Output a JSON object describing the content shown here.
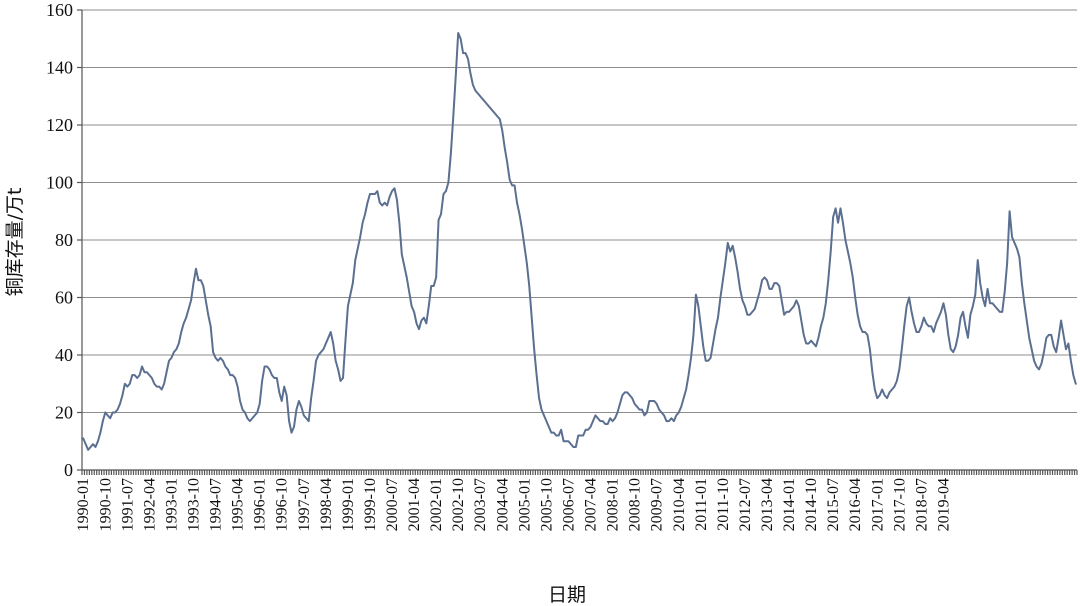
{
  "chart_data": {
    "type": "line",
    "xlabel": "日期",
    "ylabel": "铜库存量/万t",
    "ylim": [
      0,
      160
    ],
    "yticks": [
      "0",
      "20",
      "40",
      "60",
      "80",
      "100",
      "120",
      "140",
      "160"
    ],
    "x_start": "1990-01",
    "x_tick_labels": [
      "1990-01",
      "1990-10",
      "1991-07",
      "1992-04",
      "1993-01",
      "1993-10",
      "1994-07",
      "1995-04",
      "1996-01",
      "1996-10",
      "1997-07",
      "1998-04",
      "1999-01",
      "1999-10",
      "2000-07",
      "2001-04",
      "2002-01",
      "2002-10",
      "2003-07",
      "2004-04",
      "2005-01",
      "2005-10",
      "2006-07",
      "2007-04",
      "2008-01",
      "2008-10",
      "2009-07",
      "2010-04",
      "2011-01",
      "2011-10",
      "2012-07",
      "2013-04",
      "2014-01",
      "2014-10",
      "2015-07",
      "2016-04",
      "2017-01",
      "2017-10",
      "2018-07",
      "2019-04"
    ],
    "line_color": "#5b6f91",
    "grid": true,
    "series": [
      {
        "values": [
          11,
          9,
          7,
          8,
          9,
          8,
          10,
          13,
          17,
          20,
          19,
          18,
          20,
          20,
          21,
          23,
          26,
          30,
          29,
          30,
          33,
          33,
          32,
          33,
          36,
          34,
          34,
          33,
          32,
          30,
          29,
          29,
          28,
          30,
          34,
          38,
          39,
          41,
          42,
          44,
          48,
          51,
          53,
          56,
          59,
          65,
          70,
          66,
          66,
          64,
          59,
          54,
          50,
          41,
          39,
          38,
          39,
          38,
          36,
          35,
          33,
          33,
          32,
          29,
          24,
          21,
          20,
          18,
          17,
          18,
          19,
          20,
          23,
          31,
          36,
          36,
          35,
          33,
          32,
          32,
          27,
          24,
          29,
          26,
          17,
          13,
          15,
          21,
          24,
          22,
          19,
          18,
          17,
          25,
          31,
          38,
          40,
          41,
          42,
          44,
          46,
          48,
          44,
          38,
          35,
          31,
          32,
          45,
          57,
          61,
          65,
          73,
          77,
          81,
          86,
          89,
          93,
          96,
          96,
          96,
          97,
          93,
          92,
          93,
          92,
          95,
          97,
          98,
          94,
          86,
          75,
          71,
          67,
          62,
          57,
          55,
          51,
          49,
          52,
          53,
          51,
          57,
          64,
          64,
          67,
          87,
          89,
          96,
          97,
          100,
          110,
          123,
          137,
          152,
          150,
          145,
          145,
          143,
          138,
          134,
          132,
          131,
          130,
          129,
          128,
          127,
          126,
          125,
          124,
          123,
          122,
          118,
          112,
          107,
          101,
          99,
          99,
          93,
          89,
          84,
          78,
          72,
          64,
          53,
          42,
          33,
          25,
          21,
          19,
          17,
          15,
          13,
          13,
          12,
          12,
          14,
          10,
          10,
          10,
          9,
          8,
          8,
          12,
          12,
          12,
          14,
          14,
          15,
          17,
          19,
          18,
          17,
          17,
          16,
          16,
          18,
          17,
          18,
          20,
          23,
          26,
          27,
          27,
          26,
          25,
          23,
          22,
          21,
          21,
          19,
          20,
          24,
          24,
          24,
          23,
          21,
          20,
          19,
          17,
          17,
          18,
          17,
          19,
          20,
          22,
          25,
          28,
          33,
          39,
          47,
          61,
          57,
          50,
          43,
          38,
          38,
          39,
          44,
          49,
          53,
          60,
          66,
          72,
          79,
          76,
          78,
          74,
          69,
          63,
          59,
          57,
          54,
          54,
          55,
          56,
          59,
          62,
          66,
          67,
          66,
          63,
          63,
          65,
          65,
          64,
          59,
          54,
          55,
          55,
          56,
          57,
          59,
          57,
          52,
          47,
          44,
          44,
          45,
          44,
          43,
          46,
          50,
          53,
          58,
          66,
          76,
          88,
          91,
          86,
          91,
          86,
          80,
          76,
          72,
          67,
          60,
          54,
          50,
          48,
          48,
          47,
          42,
          34,
          28,
          25,
          26,
          28,
          26,
          25,
          27,
          28,
          29,
          31,
          35,
          42,
          50,
          57,
          60,
          55,
          51,
          48,
          48,
          50,
          53,
          51,
          50,
          50,
          48,
          51,
          53,
          55,
          58,
          54,
          47,
          42,
          41,
          43,
          47,
          53,
          55,
          50,
          46,
          54,
          57,
          61,
          73,
          65,
          60,
          57,
          63,
          58,
          58,
          57,
          56,
          55,
          55,
          62,
          72,
          90,
          81,
          79,
          77,
          74,
          65,
          58,
          52,
          46,
          42,
          38,
          36,
          35,
          37,
          41,
          46,
          47,
          47,
          43,
          41,
          46,
          52,
          47,
          42,
          44,
          38,
          33,
          30
        ]
      }
    ]
  }
}
